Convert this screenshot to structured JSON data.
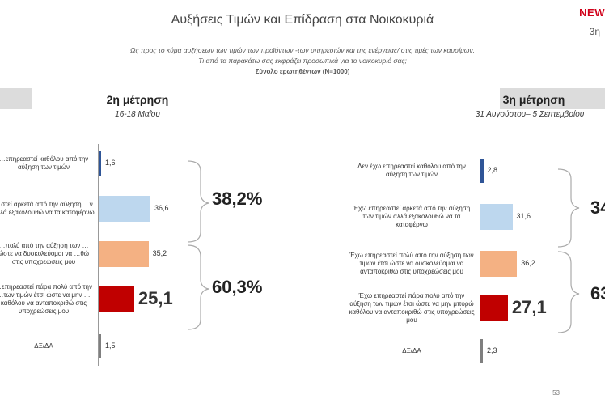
{
  "header": {
    "title": "Αυξήσεις Τιμών και Επίδραση στα Νοικοκυριά",
    "logo_text": "NEW",
    "slide_num_top": "3η"
  },
  "question": {
    "line1": "Ως προς το κύμα αυξήσεων των τιμών των προϊόντων -των υπηρεσιών και της ενέργειας/ στις τιμές των καυσίμων.",
    "line2": "Τι από τα παρακάτω σας εκφράζει  προσωπικά για το νοικοκυριό σας;",
    "base": "Σύνολο ερωτηθέντων (N=1000)"
  },
  "colors": {
    "c1": "#2f5597",
    "c2": "#bdd7ee",
    "c3": "#f4b183",
    "c4": "#c00000",
    "c5": "#7f7f7f"
  },
  "chart_data": [
    {
      "type": "bar",
      "orientation": "horizontal",
      "title": "2η μέτρηση",
      "subtitle": "16-18 Μαΐου",
      "categories": [
        "…επηρεαστεί καθόλου από την αύξηση των τιμών",
        "…στεί αρκετά από την αύξηση …ν αλλά εξακολουθώ να τα καταφέρνω",
        "…πολύ από την αύξηση των …ώστε να δυσκολεύομαι να …θώ στις υποχρεώσεις μου",
        "…επηρεαστεί πάρα πολύ από την …των τιμών έτσι ώστε να μην …καθόλου να ανταποκριθώ στις υποχρεώσεις μου",
        "ΔΞ/ΔΑ"
      ],
      "values": [
        1.6,
        36.6,
        35.2,
        25.1,
        1.5
      ],
      "value_labels": [
        "1,6",
        "36,6",
        "35,2",
        "25,1",
        "1,5"
      ],
      "group_totals": [
        "38,2%",
        "60,3%"
      ],
      "xlim": [
        0,
        100
      ]
    },
    {
      "type": "bar",
      "orientation": "horizontal",
      "title": "3η μέτρηση",
      "subtitle": "31 Αυγούστου– 5 Σεπτεμβρίου",
      "categories": [
        "Δεν έχω επηρεαστεί καθόλου από την αύξηση των τιμών",
        "Έχω επηρεαστεί αρκετά από την αύξηση των τιμών αλλά εξακολουθώ να τα καταφέρνω",
        "Έχω επηρεαστεί πολύ από την αύξηση των τιμών έτσι ώστε να δυσκολεύομαι να ανταποκριθώ στις υποχρεώσεις μου",
        "Έχω επηρεαστεί πάρα πολύ από την αύξηση των τιμών έτσι ώστε να μην μπορώ καθόλου να ανταποκριθώ στις υποχρεώσεις μου",
        "ΔΞ/ΔΑ"
      ],
      "values": [
        2.8,
        31.6,
        36.2,
        27.1,
        2.3
      ],
      "value_labels": [
        "2,8",
        "31,6",
        "36,2",
        "27,1",
        "2,3"
      ],
      "group_totals": [
        "34",
        "63"
      ],
      "xlim": [
        0,
        100
      ]
    }
  ],
  "footer": {
    "page_number": "53"
  }
}
